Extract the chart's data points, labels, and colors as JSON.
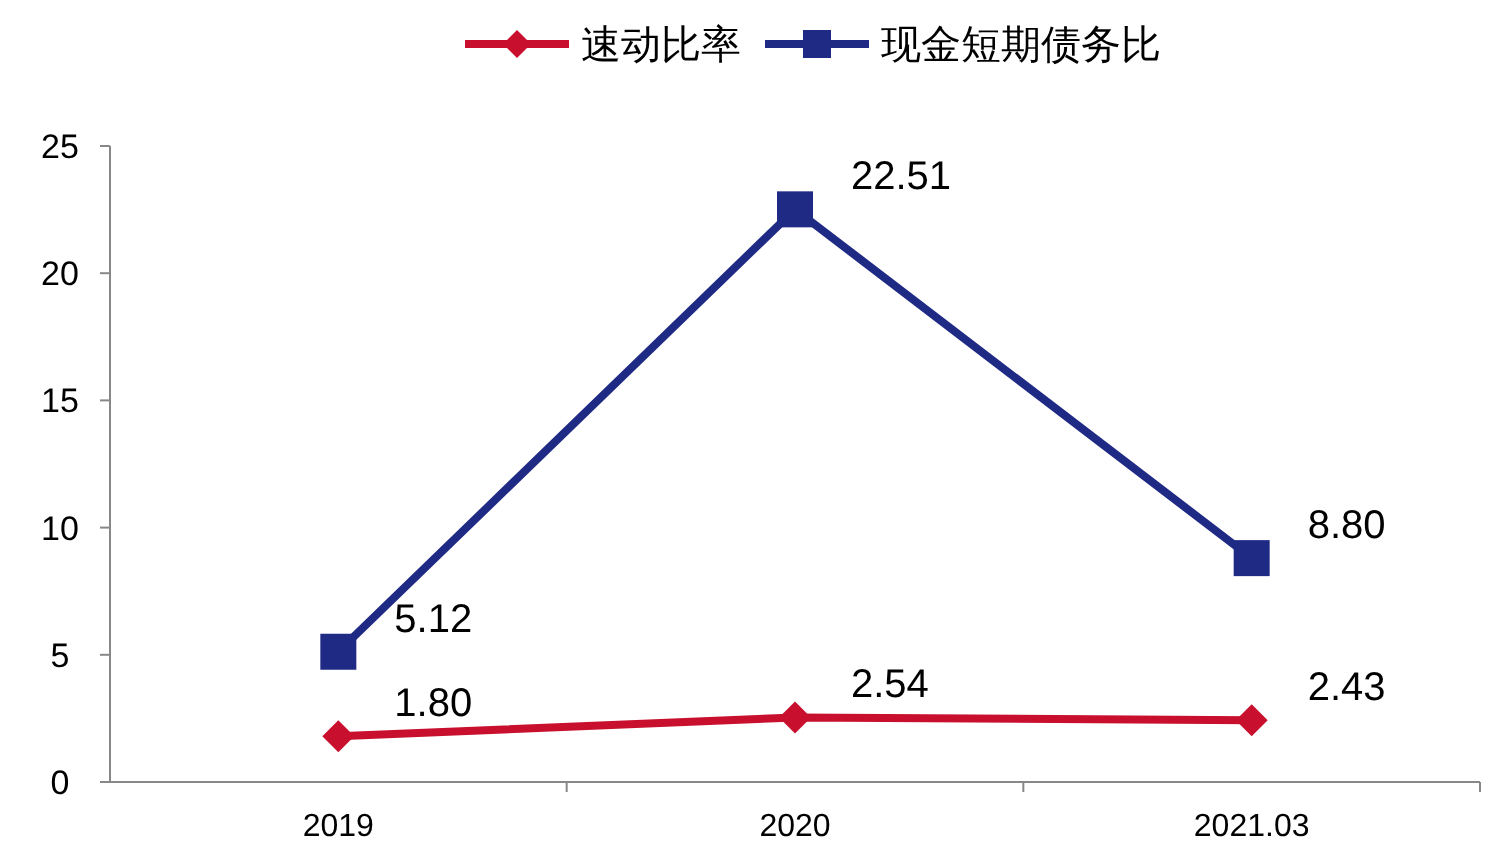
{
  "chart_data": {
    "type": "line",
    "categories": [
      "2019",
      "2020",
      "2021.03"
    ],
    "series": [
      {
        "name": "速动比率",
        "color": "#c8102e",
        "marker": "diamond",
        "values": [
          1.8,
          2.54,
          2.43
        ],
        "value_labels": [
          "1.80",
          "2.54",
          "2.43"
        ]
      },
      {
        "name": "现金短期债务比",
        "color": "#1f2a85",
        "marker": "square",
        "values": [
          5.12,
          22.51,
          8.8
        ],
        "value_labels": [
          "5.12",
          "22.51",
          "8.80"
        ]
      }
    ],
    "ylim": [
      0,
      25
    ],
    "yticks": [
      0,
      5,
      10,
      15,
      20,
      25
    ],
    "legend": "top"
  }
}
